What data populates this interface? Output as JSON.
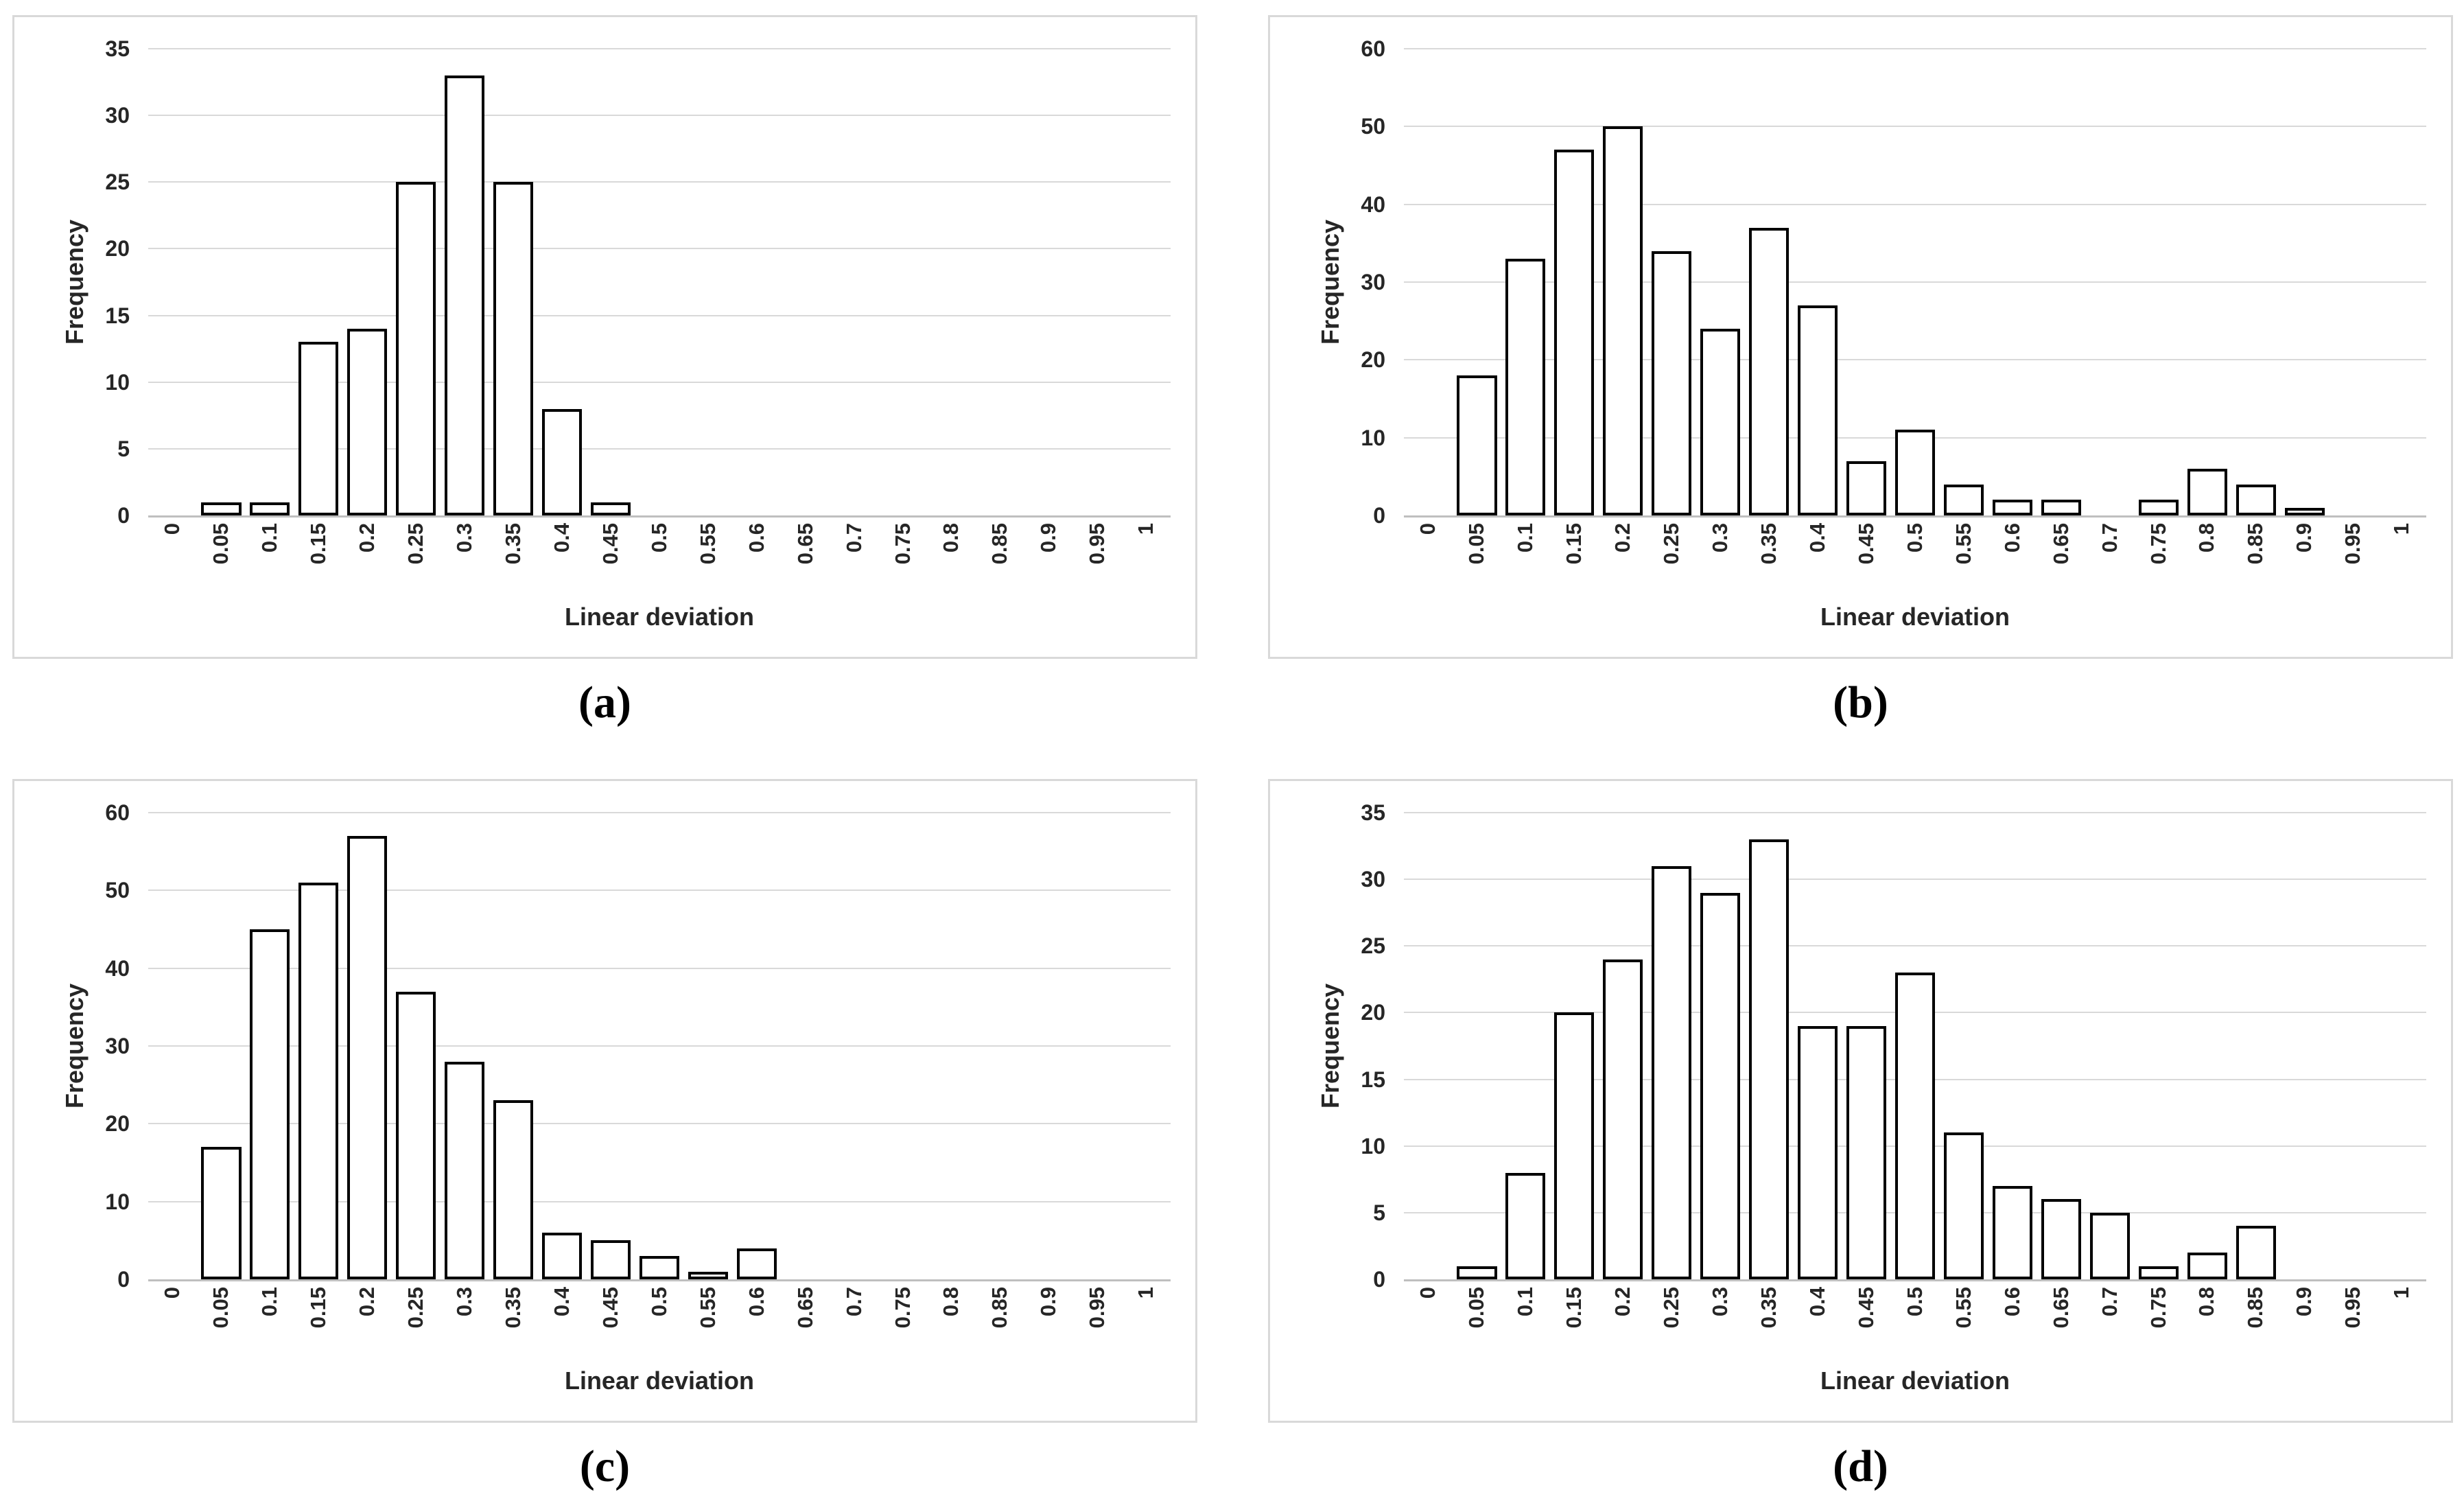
{
  "colors": {
    "gridline": "#d9d9d9",
    "axis_line": "#bfbfbf",
    "panel_border": "#d9d9d9",
    "text": "#262626",
    "bar_fill": "#ffffff",
    "bar_border": "#000000"
  },
  "chart_data": [
    {
      "type": "bar",
      "panel_label": "(a)",
      "title": "",
      "xlabel": "Linear deviation",
      "ylabel": "Frequency",
      "ylim": [
        0,
        35
      ],
      "ytick_step": 5,
      "grid": true,
      "legend": false,
      "categories": [
        "0",
        "0.05",
        "0.1",
        "0.15",
        "0.2",
        "0.25",
        "0.3",
        "0.35",
        "0.4",
        "0.45",
        "0.5",
        "0.55",
        "0.6",
        "0.65",
        "0.7",
        "0.75",
        "0.8",
        "0.85",
        "0.9",
        "0.95",
        "1"
      ],
      "values": [
        0,
        1,
        1,
        13,
        14,
        25,
        33,
        25,
        8,
        1,
        0,
        0,
        0,
        0,
        0,
        0,
        0,
        0,
        0,
        0,
        0
      ]
    },
    {
      "type": "bar",
      "panel_label": "(b)",
      "title": "",
      "xlabel": "Linear deviation",
      "ylabel": "Frequency",
      "ylim": [
        0,
        60
      ],
      "ytick_step": 10,
      "grid": true,
      "legend": false,
      "categories": [
        "0",
        "0.05",
        "0.1",
        "0.15",
        "0.2",
        "0.25",
        "0.3",
        "0.35",
        "0.4",
        "0.45",
        "0.5",
        "0.55",
        "0.6",
        "0.65",
        "0.7",
        "0.75",
        "0.8",
        "0.85",
        "0.9",
        "0.95",
        "1"
      ],
      "values": [
        0,
        18,
        33,
        47,
        50,
        34,
        24,
        37,
        27,
        7,
        11,
        4,
        2,
        2,
        0,
        2,
        6,
        4,
        1,
        0,
        0
      ]
    },
    {
      "type": "bar",
      "panel_label": "(c)",
      "title": "",
      "xlabel": "Linear deviation",
      "ylabel": "Frequency",
      "ylim": [
        0,
        60
      ],
      "ytick_step": 10,
      "grid": true,
      "legend": false,
      "categories": [
        "0",
        "0.05",
        "0.1",
        "0.15",
        "0.2",
        "0.25",
        "0.3",
        "0.35",
        "0.4",
        "0.45",
        "0.5",
        "0.55",
        "0.6",
        "0.65",
        "0.7",
        "0.75",
        "0.8",
        "0.85",
        "0.9",
        "0.95",
        "1"
      ],
      "values": [
        0,
        17,
        45,
        51,
        57,
        37,
        28,
        23,
        6,
        5,
        3,
        1,
        4,
        0,
        0,
        0,
        0,
        0,
        0,
        0,
        0
      ]
    },
    {
      "type": "bar",
      "panel_label": "(d)",
      "title": "",
      "xlabel": "Linear deviation",
      "ylabel": "Frequency",
      "ylim": [
        0,
        35
      ],
      "ytick_step": 5,
      "grid": true,
      "legend": false,
      "categories": [
        "0",
        "0.05",
        "0.1",
        "0.15",
        "0.2",
        "0.25",
        "0.3",
        "0.35",
        "0.4",
        "0.45",
        "0.5",
        "0.55",
        "0.6",
        "0.65",
        "0.7",
        "0.75",
        "0.8",
        "0.85",
        "0.9",
        "0.95",
        "1"
      ],
      "values": [
        0,
        1,
        8,
        20,
        24,
        31,
        29,
        33,
        19,
        19,
        23,
        11,
        7,
        6,
        5,
        1,
        2,
        4,
        0,
        0,
        0
      ]
    }
  ]
}
